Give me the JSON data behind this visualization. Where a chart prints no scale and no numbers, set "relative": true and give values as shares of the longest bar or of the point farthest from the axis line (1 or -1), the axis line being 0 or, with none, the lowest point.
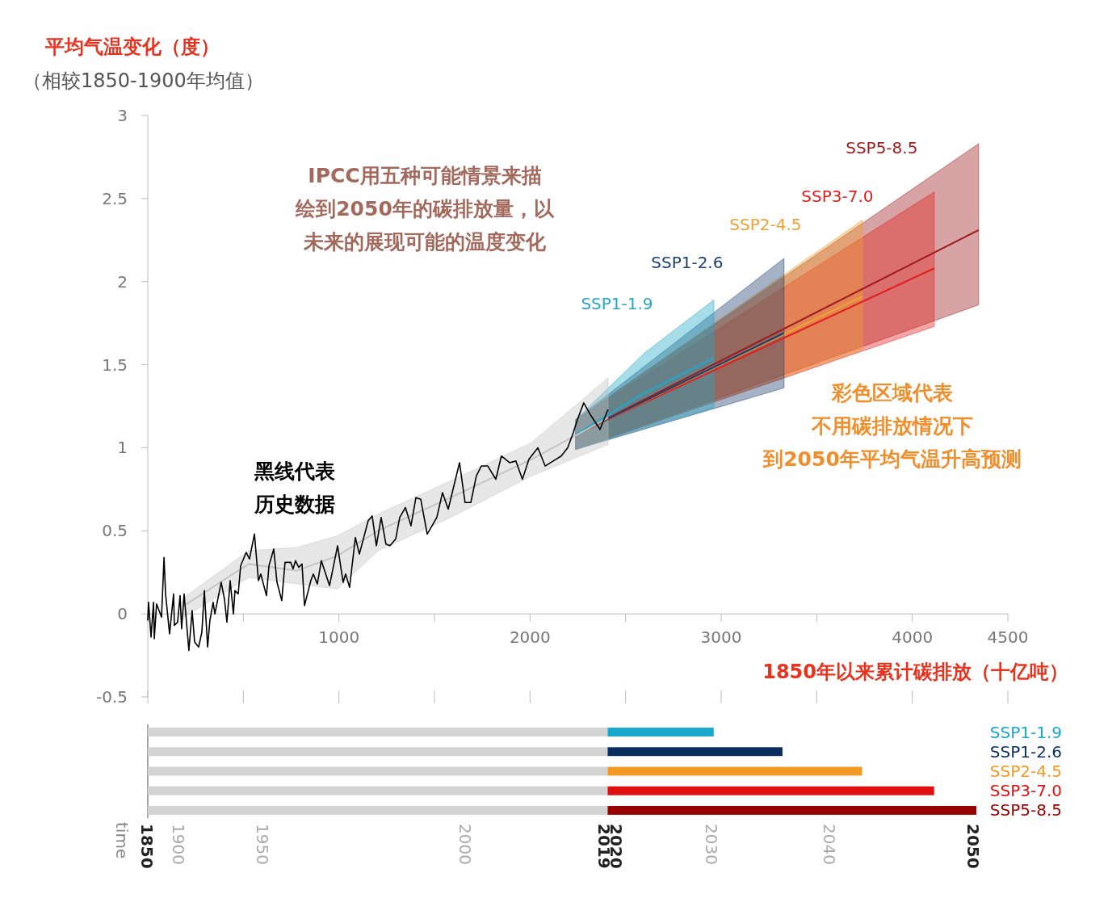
{
  "chart_data": [
    {
      "type": "line",
      "ylabel": "平均气温变化（度）",
      "subtitle": "（相较1850-1900年均值）",
      "xlabel": "1850年以来累计碳排放（十亿吨）",
      "annotations": [
        "IPCC用五种可能情景来描绘到2050年的碳排放量，以未来的展现可能的温度变化",
        "黑线代表历史数据",
        "彩色区域代表不用碳排放情况下到2050年平均气温升高预测"
      ],
      "xlim": [
        0,
        4500
      ],
      "xticks": [
        {
          "value": 0,
          "label": null
        },
        {
          "value": 500,
          "label": null
        },
        1000,
        {
          "value": 1500,
          "label": null
        },
        2000,
        {
          "value": 2500,
          "label": null
        },
        3000,
        {
          "value": 3500,
          "label": null
        },
        4000,
        4500
      ],
      "ylim": [
        -0.5,
        3
      ],
      "yticks": [
        -0.5,
        0,
        0.5,
        1,
        1.5,
        2,
        2.5,
        3
      ],
      "series": [
        {
          "color": "#000000",
          "x": [
            0,
            4,
            17,
            30,
            34,
            46,
            72,
            85,
            93,
            114,
            135,
            139,
            156,
            169,
            177,
            190,
            215,
            232,
            245,
            266,
            283,
            296,
            313,
            325,
            342,
            351,
            384,
            401,
            414,
            431,
            448,
            456,
            473,
            486,
            515,
            532,
            558,
            579,
            591,
            621,
            634,
            659,
            676,
            701,
            718,
            748,
            760,
            773,
            790,
            807,
            820,
            853,
            866,
            887,
            908,
            951,
            993,
            1022,
            1035,
            1056,
            1086,
            1107,
            1153,
            1174,
            1196,
            1221,
            1246,
            1267,
            1297,
            1318,
            1348,
            1377,
            1403,
            1428,
            1462,
            1512,
            1542,
            1572,
            1631,
            1660,
            1690,
            1719,
            1745,
            1779,
            1821,
            1850,
            1893,
            1926,
            1960,
            1994,
            2041,
            2079,
            2121,
            2163,
            2197,
            2226,
            2248,
            2281,
            2315,
            2366,
            2408
          ],
          "values": [
            -0.04,
            0.07,
            -0.14,
            0.07,
            -0.15,
            0.06,
            -0.02,
            0.34,
            0.12,
            -0.12,
            0.12,
            -0.07,
            -0.05,
            0.11,
            -0.09,
            0.12,
            -0.22,
            0.02,
            -0.17,
            -0.2,
            -0.11,
            0.14,
            -0.2,
            -0.04,
            0.07,
            0,
            0.19,
            0.09,
            -0.05,
            0.2,
            0,
            0.14,
            0.12,
            0.29,
            0.37,
            0.33,
            0.48,
            0.2,
            0.24,
            0.11,
            0.29,
            0.39,
            0.19,
            0.08,
            0.31,
            0.31,
            0.27,
            0.32,
            0.28,
            0.3,
            0.05,
            0.2,
            0.24,
            0.18,
            0.32,
            0.17,
            0.41,
            0.19,
            0.24,
            0.16,
            0.46,
            0.36,
            0.56,
            0.59,
            0.41,
            0.58,
            0.42,
            0.41,
            0.45,
            0.58,
            0.64,
            0.53,
            0.7,
            0.69,
            0.48,
            0.58,
            0.73,
            0.63,
            0.91,
            0.67,
            0.67,
            0.83,
            0.89,
            0.89,
            0.81,
            0.95,
            0.91,
            0.92,
            0.81,
            0.93,
            1,
            0.89,
            0.92,
            0.95,
            1,
            1.09,
            1.17,
            1.27,
            1.2,
            1.11,
            1.23
          ]
        },
        {
          "color": "#c4c4c4",
          "x": [
            190,
            528,
            782,
            993,
            1204,
            1584,
            2007,
            2408
          ],
          "values": [
            0.05,
            0.3,
            0.26,
            0.35,
            0.5,
            0.7,
            0.93,
            1.18
          ],
          "lower": [
            -0.02,
            0.22,
            0.18,
            0.15,
            0.38,
            0.58,
            0.83,
            1.02
          ],
          "upper": [
            0.1,
            0.38,
            0.4,
            0.47,
            0.6,
            0.8,
            1.03,
            1.42
          ]
        },
        {
          "name": "SSP1-1.9",
          "color": "#22a9c8",
          "x": [
            2239,
            2598,
            2962
          ],
          "values": [
            1.08,
            1.33,
            1.54
          ],
          "lower": [
            0.99,
            1.12,
            1.24
          ],
          "upper": [
            1.17,
            1.57,
            1.89
          ]
        },
        {
          "name": "SSP1-2.6",
          "color": "#1d3f6e",
          "x": [
            2239,
            3329
          ],
          "values": [
            1.08,
            1.69
          ],
          "lower": [
            0.99,
            1.36
          ],
          "upper": [
            1.17,
            2.14
          ]
        },
        {
          "name": "SSP2-4.5",
          "color": "#f0a030",
          "x": [
            2239,
            3739
          ],
          "values": [
            1.08,
            1.91
          ],
          "lower": [
            0.99,
            1.59
          ],
          "upper": [
            1.17,
            2.37
          ]
        },
        {
          "name": "SSP3-7.0",
          "color": "#e0201e",
          "x": [
            2239,
            4115
          ],
          "values": [
            1.08,
            2.08
          ],
          "lower": [
            0.99,
            1.73
          ],
          "upper": [
            1.17,
            2.54
          ]
        },
        {
          "name": "SSP5-8.5",
          "color": "#9c1a1c",
          "x": [
            2239,
            4347
          ],
          "values": [
            1.08,
            2.31
          ],
          "lower": [
            0.99,
            1.86
          ],
          "upper": [
            1.17,
            2.83
          ]
        }
      ]
    },
    {
      "type": "bar",
      "orientation": "horizontal",
      "stacked": true,
      "ylabel": "time",
      "categories": [
        "SSP1-1.9",
        "SSP1-2.6",
        "SSP2-4.5",
        "SSP3-7.0",
        "SSP5-8.5"
      ],
      "relative": true,
      "annotations": [
        "1850",
        "1900",
        "1950",
        "2000",
        "2019",
        "2020",
        "2030",
        "2040",
        "2050"
      ],
      "series": [
        {
          "color": "#d3d3d3",
          "values": [
            0.555,
            0.555,
            0.555,
            0.555,
            0.555
          ]
        },
        {
          "colors": [
            "#17a8cc",
            "#0a2f5e",
            "#f39a25",
            "#e00f0f",
            "#990000"
          ],
          "values": [
            0.128,
            0.211,
            0.307,
            0.394,
            0.445
          ]
        }
      ]
    }
  ]
}
